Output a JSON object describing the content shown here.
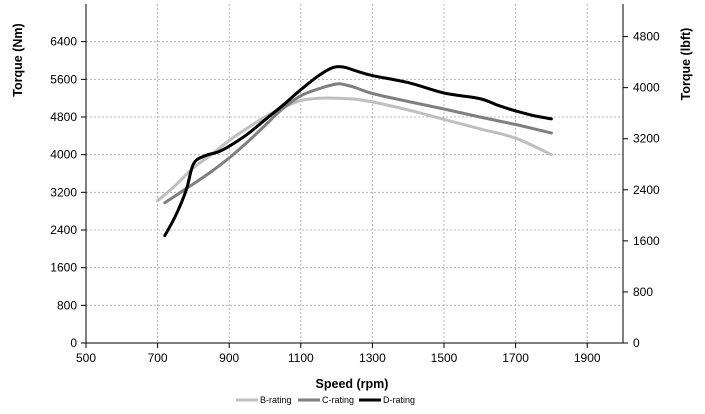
{
  "chart_data": {
    "type": "line",
    "title": "",
    "xlabel": "Speed (rpm)",
    "ylabel": "Torque (Nm)",
    "y2label": "Torque (lbft)",
    "xlim": [
      500,
      2000
    ],
    "ylim": [
      0,
      7200
    ],
    "y2lim": [
      0,
      5310
    ],
    "x_ticks": [
      "500",
      "700",
      "900",
      "1100",
      "1300",
      "1500",
      "1700",
      "1900"
    ],
    "y_ticks": [
      "0",
      "800",
      "1600",
      "2400",
      "3200",
      "4000",
      "4800",
      "5600",
      "6400"
    ],
    "y2_ticks": [
      "0",
      "800",
      "1600",
      "2400",
      "3200",
      "4000",
      "4800"
    ],
    "grid": true,
    "legend_position": "bottom",
    "series": [
      {
        "name": "B-rating",
        "color": "#bfbfbf",
        "x": [
          700,
          750,
          800,
          850,
          900,
          950,
          1000,
          1050,
          1100,
          1150,
          1200,
          1250,
          1300,
          1400,
          1500,
          1600,
          1700,
          1800
        ],
        "y": [
          3020,
          3350,
          3720,
          4000,
          4300,
          4560,
          4800,
          5000,
          5150,
          5200,
          5200,
          5180,
          5120,
          4950,
          4750,
          4550,
          4350,
          4000
        ]
      },
      {
        "name": "C-rating",
        "color": "#7f7f7f",
        "x": [
          720,
          800,
          850,
          900,
          950,
          1000,
          1050,
          1100,
          1150,
          1200,
          1220,
          1250,
          1300,
          1400,
          1500,
          1600,
          1700,
          1800
        ],
        "y": [
          2980,
          3380,
          3640,
          3930,
          4260,
          4620,
          4980,
          5250,
          5400,
          5500,
          5490,
          5430,
          5300,
          5130,
          4970,
          4800,
          4640,
          4460
        ]
      },
      {
        "name": "D-rating",
        "color": "#000000",
        "x": [
          720,
          750,
          780,
          800,
          830,
          870,
          900,
          950,
          1000,
          1050,
          1100,
          1150,
          1190,
          1220,
          1250,
          1300,
          1400,
          1500,
          1600,
          1650,
          1700,
          1750,
          1800
        ],
        "y": [
          2280,
          2700,
          3250,
          3800,
          3970,
          4060,
          4180,
          4430,
          4740,
          5050,
          5380,
          5680,
          5850,
          5860,
          5790,
          5680,
          5530,
          5310,
          5190,
          5050,
          4930,
          4830,
          4760
        ]
      }
    ]
  }
}
